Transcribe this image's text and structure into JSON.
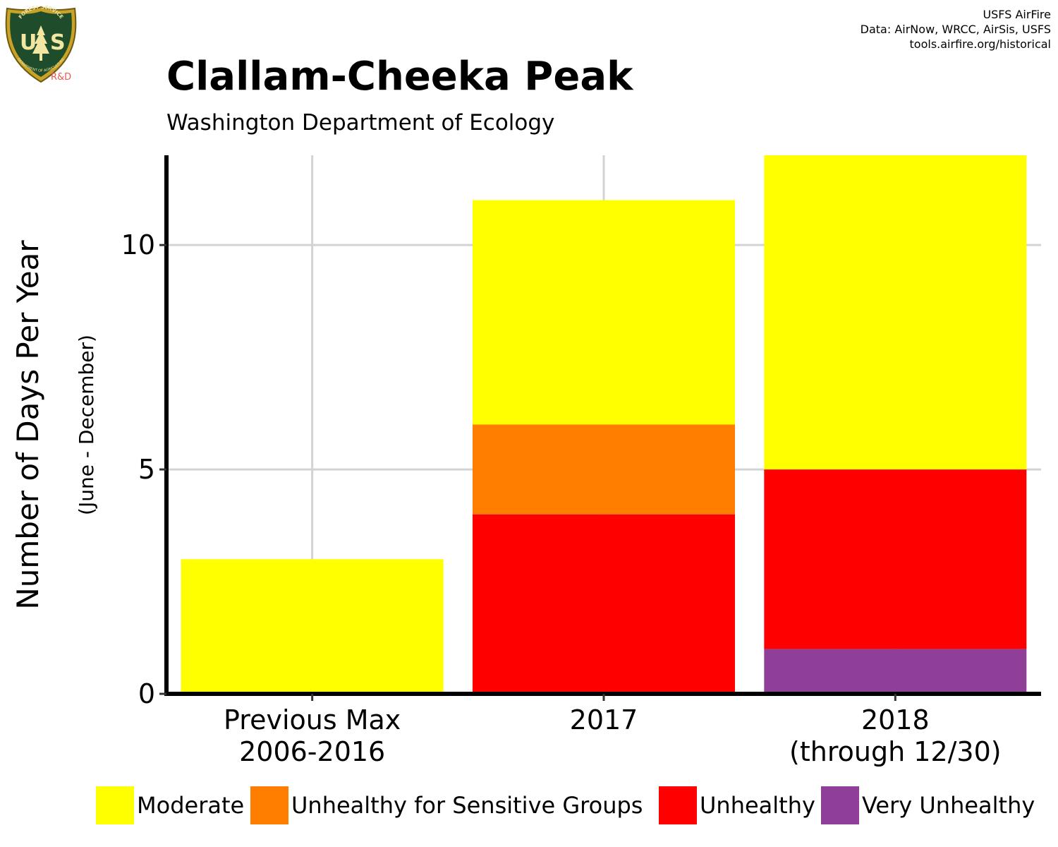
{
  "header": {
    "title": "Clallam-Cheeka Peak",
    "subtitle": "Washington Department of Ecology",
    "credits": [
      "USFS AirFire",
      "Data: AirNow, WRCC, AirSis, USFS",
      "tools.airfire.org/historical"
    ]
  },
  "logo": {
    "top_text": "FOREST SERVICE",
    "letters": "US",
    "bottom_text": "DEPARTMENT OF AGRICULTURE",
    "tag": "R&D",
    "icon": "usfs-shield-tree-icon"
  },
  "chart_data": {
    "type": "bar",
    "stacked": true,
    "title": "Clallam-Cheeka Peak",
    "subtitle": "Washington Department of Ecology",
    "ylabel": "Number of Days Per Year",
    "ylabel_sub": "(June - December)",
    "xlabel": "",
    "ylim": [
      0,
      12
    ],
    "yticks": [
      0,
      5,
      10
    ],
    "grid": true,
    "legend_position": "bottom",
    "categories": [
      [
        "Previous Max",
        "2006-2016"
      ],
      [
        "2017"
      ],
      [
        "2018",
        "(through 12/30)"
      ]
    ],
    "series": [
      {
        "name": "Very Unhealthy",
        "color": "#8F3F97",
        "values": [
          0,
          0,
          1
        ]
      },
      {
        "name": "Unhealthy",
        "color": "#FF0000",
        "values": [
          0,
          4,
          4
        ]
      },
      {
        "name": "Unhealthy for Sensitive Groups",
        "color": "#FF7E00",
        "values": [
          0,
          2,
          0
        ]
      },
      {
        "name": "Moderate",
        "color": "#FFFF00",
        "values": [
          3,
          5,
          7
        ]
      }
    ],
    "legend_order": [
      "Moderate",
      "Unhealthy for Sensitive Groups",
      "Unhealthy",
      "Very Unhealthy"
    ]
  }
}
